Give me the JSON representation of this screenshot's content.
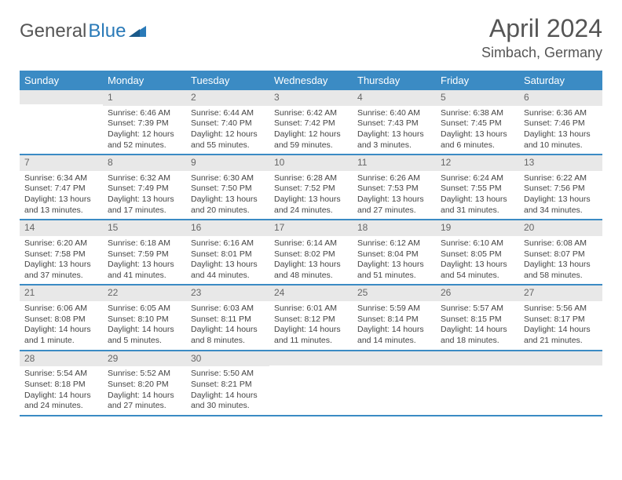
{
  "logo": {
    "text1": "General",
    "text2": "Blue"
  },
  "title": "April 2024",
  "location": "Simbach, Germany",
  "header_bg": "#3b8bc4",
  "day_bg": "#e8e8e8",
  "daynames": [
    "Sunday",
    "Monday",
    "Tuesday",
    "Wednesday",
    "Thursday",
    "Friday",
    "Saturday"
  ],
  "weeks": [
    [
      {
        "n": "",
        "sr": "",
        "ss": "",
        "dl": ""
      },
      {
        "n": "1",
        "sr": "Sunrise: 6:46 AM",
        "ss": "Sunset: 7:39 PM",
        "dl": "Daylight: 12 hours and 52 minutes."
      },
      {
        "n": "2",
        "sr": "Sunrise: 6:44 AM",
        "ss": "Sunset: 7:40 PM",
        "dl": "Daylight: 12 hours and 55 minutes."
      },
      {
        "n": "3",
        "sr": "Sunrise: 6:42 AM",
        "ss": "Sunset: 7:42 PM",
        "dl": "Daylight: 12 hours and 59 minutes."
      },
      {
        "n": "4",
        "sr": "Sunrise: 6:40 AM",
        "ss": "Sunset: 7:43 PM",
        "dl": "Daylight: 13 hours and 3 minutes."
      },
      {
        "n": "5",
        "sr": "Sunrise: 6:38 AM",
        "ss": "Sunset: 7:45 PM",
        "dl": "Daylight: 13 hours and 6 minutes."
      },
      {
        "n": "6",
        "sr": "Sunrise: 6:36 AM",
        "ss": "Sunset: 7:46 PM",
        "dl": "Daylight: 13 hours and 10 minutes."
      }
    ],
    [
      {
        "n": "7",
        "sr": "Sunrise: 6:34 AM",
        "ss": "Sunset: 7:47 PM",
        "dl": "Daylight: 13 hours and 13 minutes."
      },
      {
        "n": "8",
        "sr": "Sunrise: 6:32 AM",
        "ss": "Sunset: 7:49 PM",
        "dl": "Daylight: 13 hours and 17 minutes."
      },
      {
        "n": "9",
        "sr": "Sunrise: 6:30 AM",
        "ss": "Sunset: 7:50 PM",
        "dl": "Daylight: 13 hours and 20 minutes."
      },
      {
        "n": "10",
        "sr": "Sunrise: 6:28 AM",
        "ss": "Sunset: 7:52 PM",
        "dl": "Daylight: 13 hours and 24 minutes."
      },
      {
        "n": "11",
        "sr": "Sunrise: 6:26 AM",
        "ss": "Sunset: 7:53 PM",
        "dl": "Daylight: 13 hours and 27 minutes."
      },
      {
        "n": "12",
        "sr": "Sunrise: 6:24 AM",
        "ss": "Sunset: 7:55 PM",
        "dl": "Daylight: 13 hours and 31 minutes."
      },
      {
        "n": "13",
        "sr": "Sunrise: 6:22 AM",
        "ss": "Sunset: 7:56 PM",
        "dl": "Daylight: 13 hours and 34 minutes."
      }
    ],
    [
      {
        "n": "14",
        "sr": "Sunrise: 6:20 AM",
        "ss": "Sunset: 7:58 PM",
        "dl": "Daylight: 13 hours and 37 minutes."
      },
      {
        "n": "15",
        "sr": "Sunrise: 6:18 AM",
        "ss": "Sunset: 7:59 PM",
        "dl": "Daylight: 13 hours and 41 minutes."
      },
      {
        "n": "16",
        "sr": "Sunrise: 6:16 AM",
        "ss": "Sunset: 8:01 PM",
        "dl": "Daylight: 13 hours and 44 minutes."
      },
      {
        "n": "17",
        "sr": "Sunrise: 6:14 AM",
        "ss": "Sunset: 8:02 PM",
        "dl": "Daylight: 13 hours and 48 minutes."
      },
      {
        "n": "18",
        "sr": "Sunrise: 6:12 AM",
        "ss": "Sunset: 8:04 PM",
        "dl": "Daylight: 13 hours and 51 minutes."
      },
      {
        "n": "19",
        "sr": "Sunrise: 6:10 AM",
        "ss": "Sunset: 8:05 PM",
        "dl": "Daylight: 13 hours and 54 minutes."
      },
      {
        "n": "20",
        "sr": "Sunrise: 6:08 AM",
        "ss": "Sunset: 8:07 PM",
        "dl": "Daylight: 13 hours and 58 minutes."
      }
    ],
    [
      {
        "n": "21",
        "sr": "Sunrise: 6:06 AM",
        "ss": "Sunset: 8:08 PM",
        "dl": "Daylight: 14 hours and 1 minute."
      },
      {
        "n": "22",
        "sr": "Sunrise: 6:05 AM",
        "ss": "Sunset: 8:10 PM",
        "dl": "Daylight: 14 hours and 5 minutes."
      },
      {
        "n": "23",
        "sr": "Sunrise: 6:03 AM",
        "ss": "Sunset: 8:11 PM",
        "dl": "Daylight: 14 hours and 8 minutes."
      },
      {
        "n": "24",
        "sr": "Sunrise: 6:01 AM",
        "ss": "Sunset: 8:12 PM",
        "dl": "Daylight: 14 hours and 11 minutes."
      },
      {
        "n": "25",
        "sr": "Sunrise: 5:59 AM",
        "ss": "Sunset: 8:14 PM",
        "dl": "Daylight: 14 hours and 14 minutes."
      },
      {
        "n": "26",
        "sr": "Sunrise: 5:57 AM",
        "ss": "Sunset: 8:15 PM",
        "dl": "Daylight: 14 hours and 18 minutes."
      },
      {
        "n": "27",
        "sr": "Sunrise: 5:56 AM",
        "ss": "Sunset: 8:17 PM",
        "dl": "Daylight: 14 hours and 21 minutes."
      }
    ],
    [
      {
        "n": "28",
        "sr": "Sunrise: 5:54 AM",
        "ss": "Sunset: 8:18 PM",
        "dl": "Daylight: 14 hours and 24 minutes."
      },
      {
        "n": "29",
        "sr": "Sunrise: 5:52 AM",
        "ss": "Sunset: 8:20 PM",
        "dl": "Daylight: 14 hours and 27 minutes."
      },
      {
        "n": "30",
        "sr": "Sunrise: 5:50 AM",
        "ss": "Sunset: 8:21 PM",
        "dl": "Daylight: 14 hours and 30 minutes."
      },
      {
        "n": "",
        "sr": "",
        "ss": "",
        "dl": ""
      },
      {
        "n": "",
        "sr": "",
        "ss": "",
        "dl": ""
      },
      {
        "n": "",
        "sr": "",
        "ss": "",
        "dl": ""
      },
      {
        "n": "",
        "sr": "",
        "ss": "",
        "dl": ""
      }
    ]
  ]
}
